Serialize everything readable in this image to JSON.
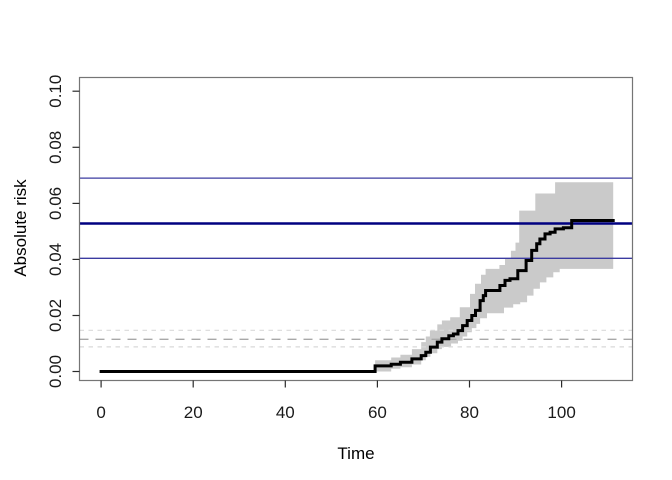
{
  "chart_data": {
    "type": "line",
    "title": "",
    "xlabel": "Time",
    "ylabel": "Absolute risk",
    "xlim": [
      -4.7,
      115.4
    ],
    "ylim": [
      -0.0032,
      0.1049
    ],
    "grid": false,
    "legend": "none",
    "frame_color": "#757575",
    "tick_color": "#2b2b2b",
    "xticks": [
      {
        "v": 0,
        "label": "0"
      },
      {
        "v": 20,
        "label": "20"
      },
      {
        "v": 40,
        "label": "40"
      },
      {
        "v": 60,
        "label": "60"
      },
      {
        "v": 80,
        "label": "80"
      },
      {
        "v": 100,
        "label": "100"
      }
    ],
    "yticks": [
      {
        "v": 0.0,
        "label": "0.00"
      },
      {
        "v": 0.02,
        "label": "0.02"
      },
      {
        "v": 0.04,
        "label": "0.04"
      },
      {
        "v": 0.06,
        "label": "0.06"
      },
      {
        "v": 0.08,
        "label": "0.08"
      },
      {
        "v": 0.1,
        "label": "0.10"
      }
    ],
    "reference_lines": [
      {
        "id": "risk-upper-ci",
        "y": 0.069,
        "style": "solid",
        "color": "#3b3ba0",
        "width": 1.3
      },
      {
        "id": "risk-lower-ci",
        "y": 0.0404,
        "style": "solid",
        "color": "#3b3ba0",
        "width": 1.3
      },
      {
        "id": "risk-estimate",
        "y": 0.0528,
        "style": "solid",
        "color": "#000080",
        "width": 2.5
      },
      {
        "id": "baseline-upper-ci",
        "y": 0.0147,
        "style": "dashed",
        "color": "#d9d9d9",
        "width": 1.2,
        "dash": "4.5,4.5"
      },
      {
        "id": "baseline-lower-ci",
        "y": 0.0088,
        "style": "dashed",
        "color": "#d9d9d9",
        "width": 1.2,
        "dash": "4.5,4.5"
      },
      {
        "id": "baseline-estimate",
        "y": 0.0115,
        "style": "dashed",
        "color": "#a8a8a8",
        "width": 1.4,
        "dash": "9,7"
      }
    ],
    "confidence_band": {
      "name": "confidence-band",
      "color": "#cacaca",
      "upper": [
        [
          0,
          0.0005
        ],
        [
          59.5,
          0.004
        ],
        [
          63,
          0.005
        ],
        [
          65,
          0.006
        ],
        [
          67.5,
          0.008
        ],
        [
          69.5,
          0.0105
        ],
        [
          70.5,
          0.0125
        ],
        [
          71.4,
          0.0146
        ],
        [
          73,
          0.0168
        ],
        [
          74,
          0.0182
        ],
        [
          75.8,
          0.0194
        ],
        [
          77.9,
          0.0229
        ],
        [
          80.1,
          0.0277
        ],
        [
          81.2,
          0.0313
        ],
        [
          82.5,
          0.0345
        ],
        [
          83.5,
          0.0366
        ],
        [
          86.5,
          0.038
        ],
        [
          87.7,
          0.0402
        ],
        [
          89,
          0.0431
        ],
        [
          90,
          0.046
        ],
        [
          90.8,
          0.0574
        ],
        [
          94.3,
          0.0635
        ],
        [
          98.6,
          0.0675
        ],
        [
          111.2,
          0.0675
        ]
      ],
      "lower": [
        [
          0,
          0.0
        ],
        [
          63,
          0.001
        ],
        [
          65,
          0.0015
        ],
        [
          67.5,
          0.0025
        ],
        [
          69.5,
          0.004
        ],
        [
          70.5,
          0.0053
        ],
        [
          71.5,
          0.0065
        ],
        [
          73,
          0.008
        ],
        [
          74,
          0.0088
        ],
        [
          76,
          0.01
        ],
        [
          77.5,
          0.011
        ],
        [
          78.5,
          0.0125
        ],
        [
          79.5,
          0.014
        ],
        [
          80.5,
          0.0155
        ],
        [
          81.5,
          0.017
        ],
        [
          82.3,
          0.019
        ],
        [
          83.8,
          0.0208
        ],
        [
          87.5,
          0.0228
        ],
        [
          89.5,
          0.024
        ],
        [
          91,
          0.0247
        ],
        [
          92.5,
          0.0271
        ],
        [
          93.9,
          0.0295
        ],
        [
          95.3,
          0.0318
        ],
        [
          96.7,
          0.0336
        ],
        [
          98.2,
          0.0354
        ],
        [
          99.6,
          0.0366
        ],
        [
          111.2,
          0.0366
        ]
      ]
    },
    "series": [
      {
        "name": "absolute-risk-curve",
        "type": "step",
        "color": "#000000",
        "width": 3,
        "points": [
          [
            0,
            0.0
          ],
          [
            59.5,
            0.002
          ],
          [
            63,
            0.0026
          ],
          [
            65,
            0.0033
          ],
          [
            67.5,
            0.0045
          ],
          [
            69.5,
            0.0057
          ],
          [
            70.5,
            0.0069
          ],
          [
            71.5,
            0.0087
          ],
          [
            73,
            0.0105
          ],
          [
            74,
            0.0117
          ],
          [
            75.5,
            0.0128
          ],
          [
            76.5,
            0.0134
          ],
          [
            77.5,
            0.0146
          ],
          [
            78.5,
            0.0164
          ],
          [
            79.5,
            0.0182
          ],
          [
            80.5,
            0.02
          ],
          [
            81.3,
            0.0218
          ],
          [
            82.3,
            0.0253
          ],
          [
            83,
            0.0271
          ],
          [
            83.5,
            0.0289
          ],
          [
            86.6,
            0.0307
          ],
          [
            87.7,
            0.0325
          ],
          [
            88.8,
            0.0331
          ],
          [
            90.5,
            0.036
          ],
          [
            92.3,
            0.0396
          ],
          [
            93.5,
            0.0432
          ],
          [
            94.6,
            0.0456
          ],
          [
            95.3,
            0.0473
          ],
          [
            96.4,
            0.0491
          ],
          [
            97.5,
            0.0497
          ],
          [
            98.6,
            0.0509
          ],
          [
            100.4,
            0.0513
          ],
          [
            102.2,
            0.0539
          ],
          [
            111.2,
            0.0539
          ]
        ]
      }
    ]
  }
}
